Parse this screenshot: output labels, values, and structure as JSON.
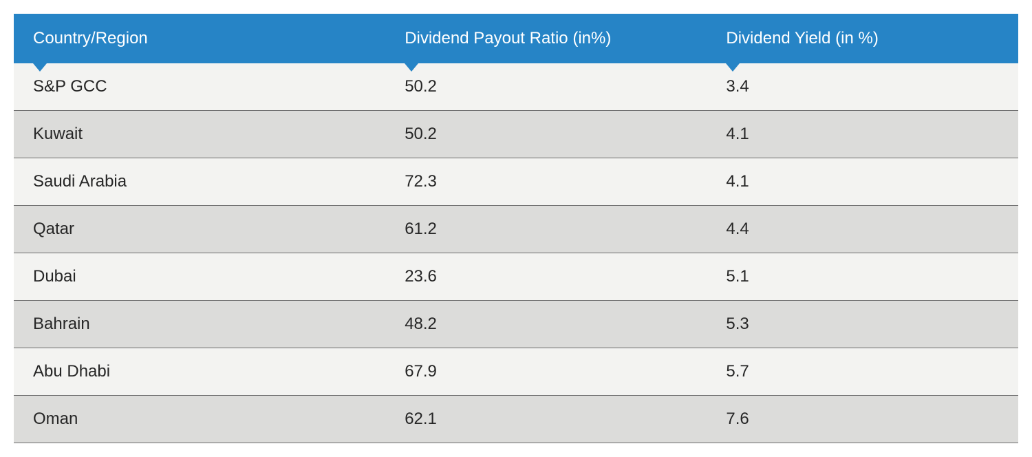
{
  "table": {
    "type": "table",
    "header_bg_color": "#2684c6",
    "header_text_color": "#ffffff",
    "row_odd_bg": "#f3f3f1",
    "row_even_bg": "#dcdcda",
    "border_color": "#6b6b6b",
    "text_color": "#262626",
    "font_size_header": 24,
    "font_size_cell": 24,
    "columns": [
      {
        "label": "Country/Region",
        "width_pct": 37,
        "align": "left",
        "sort_indicator": true
      },
      {
        "label": "Dividend Payout Ratio (in%)",
        "width_pct": 32,
        "align": "left",
        "sort_indicator": true
      },
      {
        "label": "Dividend Yield (in %)",
        "width_pct": 31,
        "align": "left",
        "sort_indicator": true
      }
    ],
    "rows": [
      {
        "country": "S&P GCC",
        "payout": "50.2",
        "yield": "3.4"
      },
      {
        "country": "Kuwait",
        "payout": "50.2",
        "yield": "4.1"
      },
      {
        "country": "Saudi Arabia",
        "payout": "72.3",
        "yield": "4.1"
      },
      {
        "country": "Qatar",
        "payout": "61.2",
        "yield": "4.4"
      },
      {
        "country": "Dubai",
        "payout": "23.6",
        "yield": "5.1"
      },
      {
        "country": "Bahrain",
        "payout": "48.2",
        "yield": "5.3"
      },
      {
        "country": "Abu Dhabi",
        "payout": "67.9",
        "yield": "5.7"
      },
      {
        "country": "Oman",
        "payout": "62.1",
        "yield": "7.6"
      }
    ]
  }
}
